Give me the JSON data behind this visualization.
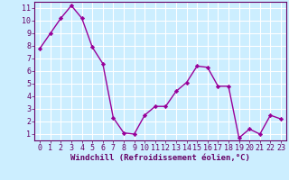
{
  "x": [
    0,
    1,
    2,
    3,
    4,
    5,
    6,
    7,
    8,
    9,
    10,
    11,
    12,
    13,
    14,
    15,
    16,
    17,
    18,
    19,
    20,
    21,
    22,
    23
  ],
  "y": [
    7.8,
    9.0,
    10.2,
    11.2,
    10.2,
    7.9,
    6.6,
    2.3,
    1.1,
    1.0,
    2.5,
    3.2,
    3.2,
    4.4,
    5.1,
    6.4,
    6.3,
    4.8,
    4.8,
    0.7,
    1.4,
    1.0,
    2.5,
    2.2
  ],
  "line_color": "#990099",
  "marker": "D",
  "markersize": 2.2,
  "linewidth": 1.0,
  "xlabel": "Windchill (Refroidissement éolien,°C)",
  "xlim": [
    -0.5,
    23.5
  ],
  "ylim": [
    0.5,
    11.5
  ],
  "yticks": [
    1,
    2,
    3,
    4,
    5,
    6,
    7,
    8,
    9,
    10,
    11
  ],
  "xticks": [
    0,
    1,
    2,
    3,
    4,
    5,
    6,
    7,
    8,
    9,
    10,
    11,
    12,
    13,
    14,
    15,
    16,
    17,
    18,
    19,
    20,
    21,
    22,
    23
  ],
  "bg_color": "#cceeff",
  "grid_color": "#ffffff",
  "tick_color": "#660066",
  "label_color": "#660066",
  "xlabel_fontsize": 6.5,
  "tick_fontsize": 6.0
}
